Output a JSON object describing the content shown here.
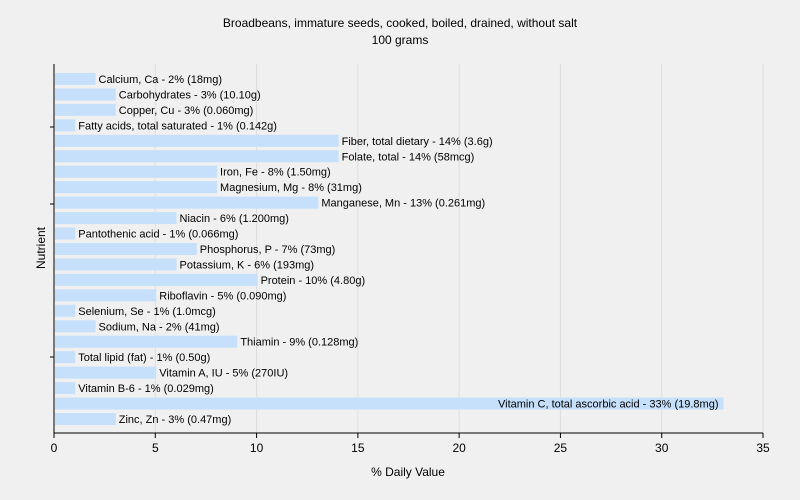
{
  "chart_data": {
    "type": "bar",
    "orientation": "horizontal",
    "title": "Broadbeans, immature seeds, cooked, boiled, drained, without salt",
    "subtitle": "100 grams",
    "xlabel": "% Daily Value",
    "ylabel": "Nutrient",
    "xlim": [
      0,
      35
    ],
    "xticks": [
      "0",
      "5",
      "10",
      "15",
      "20",
      "25",
      "30",
      "35"
    ],
    "grid": true,
    "bar_color": "#c6e0fb",
    "grid_color": "#dddddd",
    "categories": [
      "Calcium, Ca",
      "Carbohydrates",
      "Copper, Cu",
      "Fatty acids, total saturated",
      "Fiber, total dietary",
      "Folate, total",
      "Iron, Fe",
      "Magnesium, Mg",
      "Manganese, Mn",
      "Niacin",
      "Pantothenic acid",
      "Phosphorus, P",
      "Potassium, K",
      "Protein",
      "Riboflavin",
      "Selenium, Se",
      "Sodium, Na",
      "Thiamin",
      "Total lipid (fat)",
      "Vitamin A, IU",
      "Vitamin B-6",
      "Vitamin C, total ascorbic acid",
      "Zinc, Zn"
    ],
    "values": [
      2,
      3,
      3,
      1,
      14,
      14,
      8,
      8,
      13,
      6,
      1,
      7,
      6,
      10,
      5,
      1,
      2,
      9,
      1,
      5,
      1,
      33,
      3
    ],
    "labels": [
      "Calcium, Ca - 2% (18mg)",
      "Carbohydrates - 3% (10.10g)",
      "Copper, Cu - 3% (0.060mg)",
      "Fatty acids, total saturated - 1% (0.142g)",
      "Fiber, total dietary - 14% (3.6g)",
      "Folate, total - 14% (58mcg)",
      "Iron, Fe - 8% (1.50mg)",
      "Magnesium, Mg - 8% (31mg)",
      "Manganese, Mn - 13% (0.261mg)",
      "Niacin - 6% (1.200mg)",
      "Pantothenic acid - 1% (0.066mg)",
      "Phosphorus, P - 7% (73mg)",
      "Potassium, K - 6% (193mg)",
      "Protein - 10% (4.80g)",
      "Riboflavin - 5% (0.090mg)",
      "Selenium, Se - 1% (1.0mcg)",
      "Sodium, Na - 2% (41mg)",
      "Thiamin - 9% (0.128mg)",
      "Total lipid (fat) - 1% (0.50g)",
      "Vitamin A, IU - 5% (270IU)",
      "Vitamin B-6 - 1% (0.029mg)",
      "Vitamin C, total ascorbic acid - 33% (19.8mg)",
      "Zinc, Zn - 3% (0.47mg)"
    ]
  }
}
